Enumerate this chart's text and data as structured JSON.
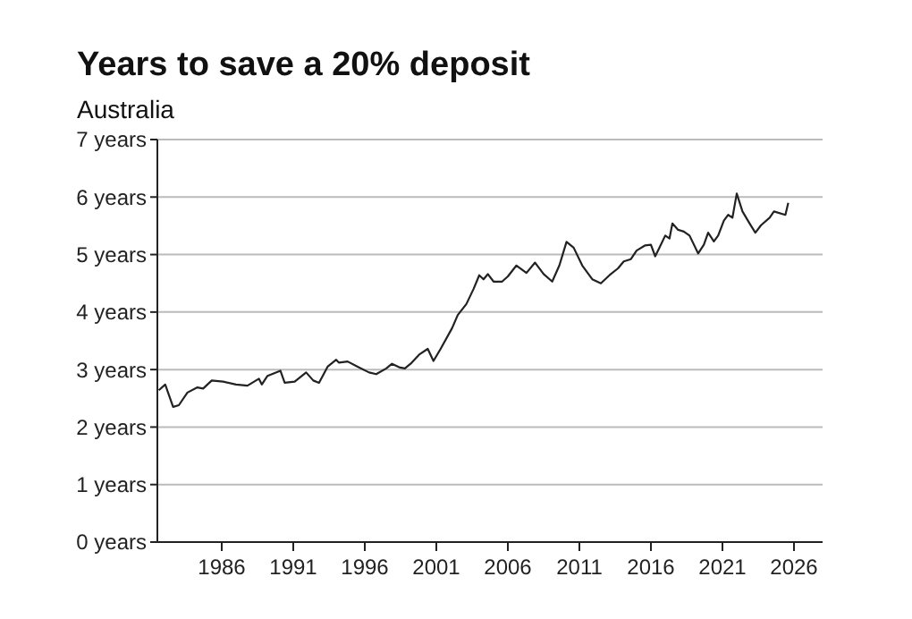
{
  "chart_data": {
    "type": "line",
    "title": "Years to save a 20% deposit",
    "subtitle": "Australia",
    "xlim": [
      1981.5,
      2028
    ],
    "xticks": [
      1986,
      1991,
      1996,
      2001,
      2006,
      2011,
      2016,
      2021,
      2026
    ],
    "ylim": [
      0,
      7
    ],
    "yticks": [
      {
        "value": 0,
        "label": "0 years"
      },
      {
        "value": 1,
        "label": "1 years"
      },
      {
        "value": 2,
        "label": "2 years"
      },
      {
        "value": 3,
        "label": "3 years"
      },
      {
        "value": 4,
        "label": "4 years"
      },
      {
        "value": 5,
        "label": "5 years"
      },
      {
        "value": 6,
        "label": "6 years"
      },
      {
        "value": 7,
        "label": "7 years"
      }
    ],
    "grid": "y",
    "marker": "none",
    "line_style": "solid",
    "series": [
      {
        "color": "#222222",
        "x": [
          1981.6,
          1982.05,
          1982.6,
          1983.0,
          1983.6,
          1984.3,
          1984.7,
          1985.3,
          1986.1,
          1987.0,
          1987.8,
          1988.6,
          1988.8,
          1989.2,
          1990.1,
          1990.4,
          1991.1,
          1991.9,
          1992.4,
          1992.8,
          1993.4,
          1994.0,
          1994.2,
          1994.8,
          1995.5,
          1996.3,
          1996.8,
          1997.5,
          1997.9,
          1998.4,
          1998.8,
          1999.2,
          1999.8,
          2000.4,
          2000.8,
          2001.3,
          2002.1,
          2002.5,
          2003.1,
          2003.6,
          2004.0,
          2004.3,
          2004.6,
          2005.0,
          2005.6,
          2006.0,
          2006.6,
          2007.3,
          2007.9,
          2008.5,
          2009.1,
          2009.6,
          2010.1,
          2010.6,
          2011.2,
          2011.9,
          2012.5,
          2013.1,
          2013.7,
          2014.1,
          2014.6,
          2015.0,
          2015.6,
          2016.0,
          2016.3,
          2016.6,
          2017.0,
          2017.3,
          2017.5,
          2017.9,
          2018.3,
          2018.7,
          2019.3,
          2019.7,
          2020.0,
          2020.4,
          2020.7,
          2021.1,
          2021.4,
          2021.7,
          2022.0,
          2022.4,
          2022.9,
          2023.3,
          2023.7,
          2024.3,
          2024.6,
          2025.4,
          2025.6
        ],
        "values": [
          2.64,
          2.74,
          2.35,
          2.38,
          2.6,
          2.69,
          2.67,
          2.81,
          2.79,
          2.74,
          2.72,
          2.84,
          2.74,
          2.89,
          2.98,
          2.77,
          2.79,
          2.95,
          2.81,
          2.77,
          3.05,
          3.17,
          3.12,
          3.14,
          3.05,
          2.95,
          2.92,
          3.02,
          3.1,
          3.04,
          3.02,
          3.1,
          3.26,
          3.36,
          3.15,
          3.36,
          3.72,
          3.95,
          4.14,
          4.4,
          4.64,
          4.57,
          4.66,
          4.53,
          4.53,
          4.62,
          4.81,
          4.68,
          4.86,
          4.66,
          4.53,
          4.81,
          5.22,
          5.12,
          4.81,
          4.57,
          4.5,
          4.64,
          4.76,
          4.88,
          4.92,
          5.07,
          5.16,
          5.17,
          4.97,
          5.12,
          5.33,
          5.28,
          5.54,
          5.43,
          5.4,
          5.33,
          5.02,
          5.17,
          5.38,
          5.23,
          5.33,
          5.59,
          5.69,
          5.64,
          6.06,
          5.75,
          5.54,
          5.38,
          5.51,
          5.64,
          5.75,
          5.69,
          5.9
        ]
      }
    ]
  }
}
